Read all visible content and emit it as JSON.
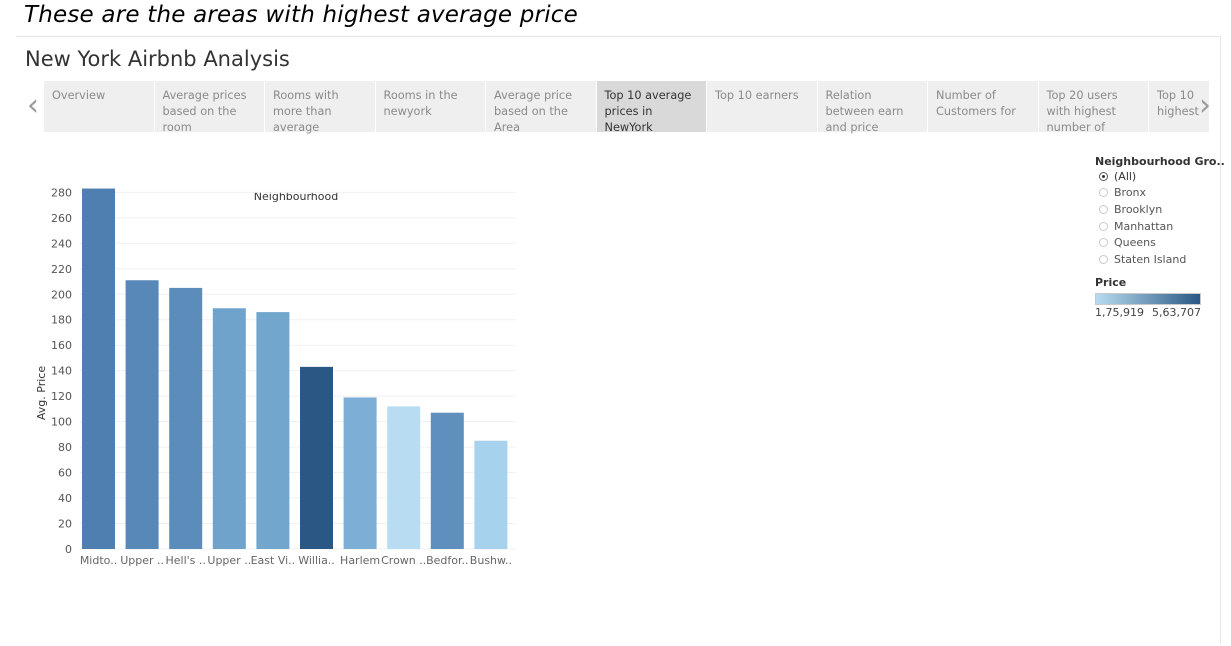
{
  "caption": "These are the areas with highest average price",
  "dashboard": {
    "title": "New York Airbnb Analysis",
    "tabs": [
      {
        "label": "Overview"
      },
      {
        "label": "Average prices based on the room"
      },
      {
        "label": "Rooms with more than average"
      },
      {
        "label": "Rooms in the newyork"
      },
      {
        "label": "Average price based on the Area"
      },
      {
        "label": "Top 10 average prices in NewYork"
      },
      {
        "label": "Top 10 earners"
      },
      {
        "label": "Relation between earn and price"
      },
      {
        "label": "Number of Customers for"
      },
      {
        "label": "Top 20 users with highest number of"
      },
      {
        "label": "Top 10 highest"
      }
    ],
    "active_tab_index": 5,
    "nav": {
      "prev_icon": "‹",
      "next_icon": "›"
    }
  },
  "chart_data": {
    "type": "bar",
    "title": "Neighbourhood",
    "xlabel": "",
    "ylabel": "Avg. Price",
    "ylim": [
      0,
      285
    ],
    "yticks": [
      0,
      20,
      40,
      60,
      80,
      100,
      120,
      140,
      160,
      180,
      200,
      220,
      240,
      260,
      280
    ],
    "categories": [
      "Midto..",
      "Upper ..",
      "Hell's ..",
      "Upper ..",
      "East Vi..",
      "Willia..",
      "Harlem",
      "Crown ..",
      "Bedfor..",
      "Bushw.."
    ],
    "values": [
      283,
      211,
      205,
      189,
      186,
      143,
      119,
      112,
      107,
      85
    ],
    "colors": [
      "#4f7fb0",
      "#5788b8",
      "#5b8cbb",
      "#6fa3cb",
      "#72a6cd",
      "#2a5783",
      "#7dafd6",
      "#b8dcf1",
      "#5f8fbd",
      "#a7d2ee"
    ],
    "grid": true
  },
  "filter": {
    "title": "Neighbourhood Gro..",
    "options": [
      "(All)",
      "Bronx",
      "Brooklyn",
      "Manhattan",
      "Queens",
      "Staten Island"
    ],
    "selected": "(All)"
  },
  "price_legend": {
    "title": "Price",
    "min_label": "1,75,919",
    "max_label": "5,63,707",
    "color_low": "#b7dcf1",
    "color_high": "#2a5783"
  }
}
